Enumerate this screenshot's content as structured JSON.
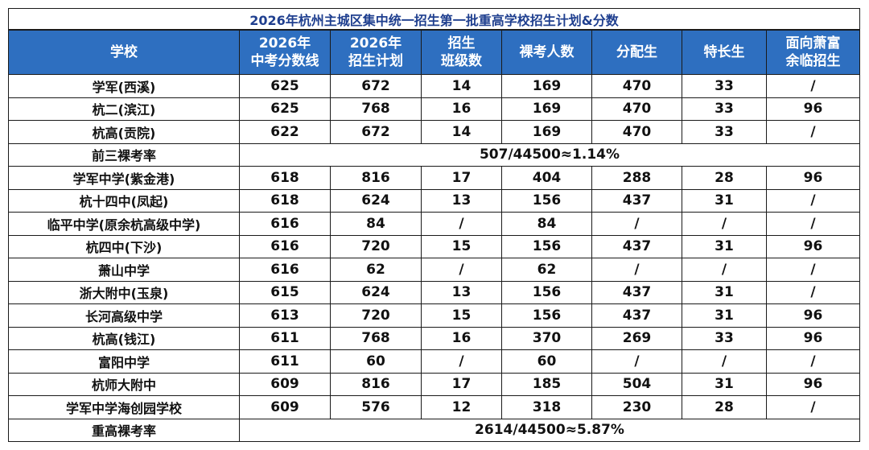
{
  "title": "2026年杭州主城区集中统一招生第一批重高学校招生计划&分数",
  "headers": [
    [
      "学校"
    ],
    [
      "2026年",
      "中考分数线"
    ],
    [
      "2026年",
      "招生计划"
    ],
    [
      "招生",
      "班级数"
    ],
    [
      "裸考人数"
    ],
    [
      "分配生"
    ],
    [
      "特长生"
    ],
    [
      "面向萧富",
      "余临招生"
    ]
  ],
  "rows": [
    {
      "type": "data",
      "cells": [
        "学军(西溪)",
        "625",
        "672",
        "14",
        "169",
        "470",
        "33",
        "/"
      ]
    },
    {
      "type": "data",
      "cells": [
        "杭二(滨江)",
        "625",
        "768",
        "16",
        "169",
        "470",
        "33",
        "96"
      ]
    },
    {
      "type": "data",
      "cells": [
        "杭高(贡院)",
        "622",
        "672",
        "14",
        "169",
        "470",
        "33",
        "/"
      ]
    },
    {
      "type": "summary",
      "label": "前三裸考率",
      "text": "507/44500≈1.14%"
    },
    {
      "type": "data",
      "cells": [
        "学军中学(紫金港)",
        "618",
        "816",
        "17",
        "404",
        "288",
        "28",
        "96"
      ]
    },
    {
      "type": "data",
      "cells": [
        "杭十四中(凤起)",
        "618",
        "624",
        "13",
        "156",
        "437",
        "31",
        "/"
      ]
    },
    {
      "type": "data",
      "cells": [
        "临平中学(原余杭高级中学)",
        "616",
        "84",
        "/",
        "84",
        "/",
        "/",
        "/"
      ]
    },
    {
      "type": "data",
      "cells": [
        "杭四中(下沙)",
        "616",
        "720",
        "15",
        "156",
        "437",
        "31",
        "96"
      ]
    },
    {
      "type": "data",
      "cells": [
        "萧山中学",
        "616",
        "62",
        "/",
        "62",
        "/",
        "/",
        "/"
      ]
    },
    {
      "type": "data",
      "cells": [
        "浙大附中(玉泉)",
        "615",
        "624",
        "13",
        "156",
        "437",
        "31",
        "/"
      ]
    },
    {
      "type": "data",
      "cells": [
        "长河高级中学",
        "613",
        "720",
        "15",
        "156",
        "437",
        "31",
        "96"
      ]
    },
    {
      "type": "data",
      "cells": [
        "杭高(钱江)",
        "611",
        "768",
        "16",
        "370",
        "269",
        "33",
        "96"
      ]
    },
    {
      "type": "data",
      "cells": [
        "富阳中学",
        "611",
        "60",
        "/",
        "60",
        "/",
        "/",
        "/"
      ]
    },
    {
      "type": "data",
      "cells": [
        "杭师大附中",
        "609",
        "816",
        "17",
        "185",
        "504",
        "31",
        "96"
      ]
    },
    {
      "type": "data",
      "cells": [
        "学军中学海创园学校",
        "609",
        "576",
        "12",
        "318",
        "230",
        "28",
        "/"
      ]
    },
    {
      "type": "summary",
      "label": "重高裸考率",
      "text": "2614/44500≈5.87%"
    }
  ],
  "colors": {
    "header_bg": "#2e6fc0",
    "header_text": "#ffffff",
    "title_text": "#1f3f8f",
    "border": "#1a1a1a"
  }
}
